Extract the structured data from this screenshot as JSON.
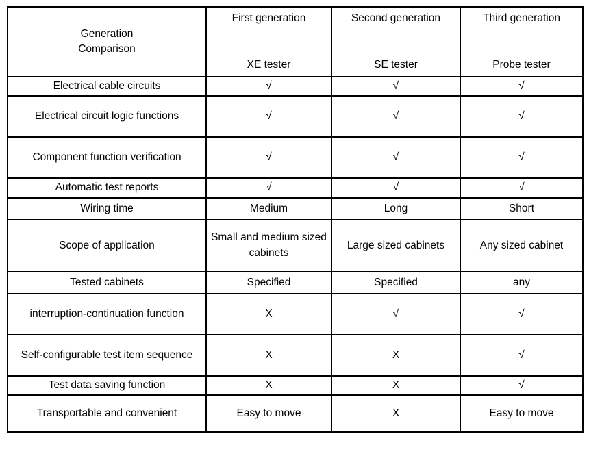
{
  "table": {
    "corner": {
      "line1": "Generation",
      "line2": "Comparison"
    },
    "columns": [
      {
        "generation": "First generation",
        "tester": "XE tester"
      },
      {
        "generation": "Second generation",
        "tester": "SE tester"
      },
      {
        "generation": "Third generation",
        "tester": "Probe tester"
      }
    ],
    "rows": [
      {
        "label": "Electrical cable circuits",
        "cells": [
          "√",
          "√",
          "√"
        ]
      },
      {
        "label": "Electrical circuit logic functions",
        "cells": [
          "√",
          "√",
          "√"
        ]
      },
      {
        "label": "Component function verification",
        "cells": [
          "√",
          "√",
          "√"
        ]
      },
      {
        "label": "Automatic test reports",
        "cells": [
          "√",
          "√",
          "√"
        ]
      },
      {
        "label": "Wiring time",
        "cells": [
          "Medium",
          "Long",
          "Short"
        ]
      },
      {
        "label": "Scope of application",
        "cells": [
          "Small and medium sized cabinets",
          "Large sized cabinets",
          "Any sized cabinet"
        ]
      },
      {
        "label": "Tested cabinets",
        "cells": [
          "Specified",
          "Specified",
          "any"
        ]
      },
      {
        "label": "interruption-continuation function",
        "cells": [
          "X",
          "√",
          "√"
        ]
      },
      {
        "label": "Self-configurable test item sequence",
        "cells": [
          "X",
          "X",
          "√"
        ]
      },
      {
        "label": "Test data saving function",
        "cells": [
          "X",
          "X",
          "√"
        ]
      },
      {
        "label": "Transportable and convenient",
        "cells": [
          "Easy to move",
          "X",
          "Easy to move"
        ]
      }
    ]
  }
}
